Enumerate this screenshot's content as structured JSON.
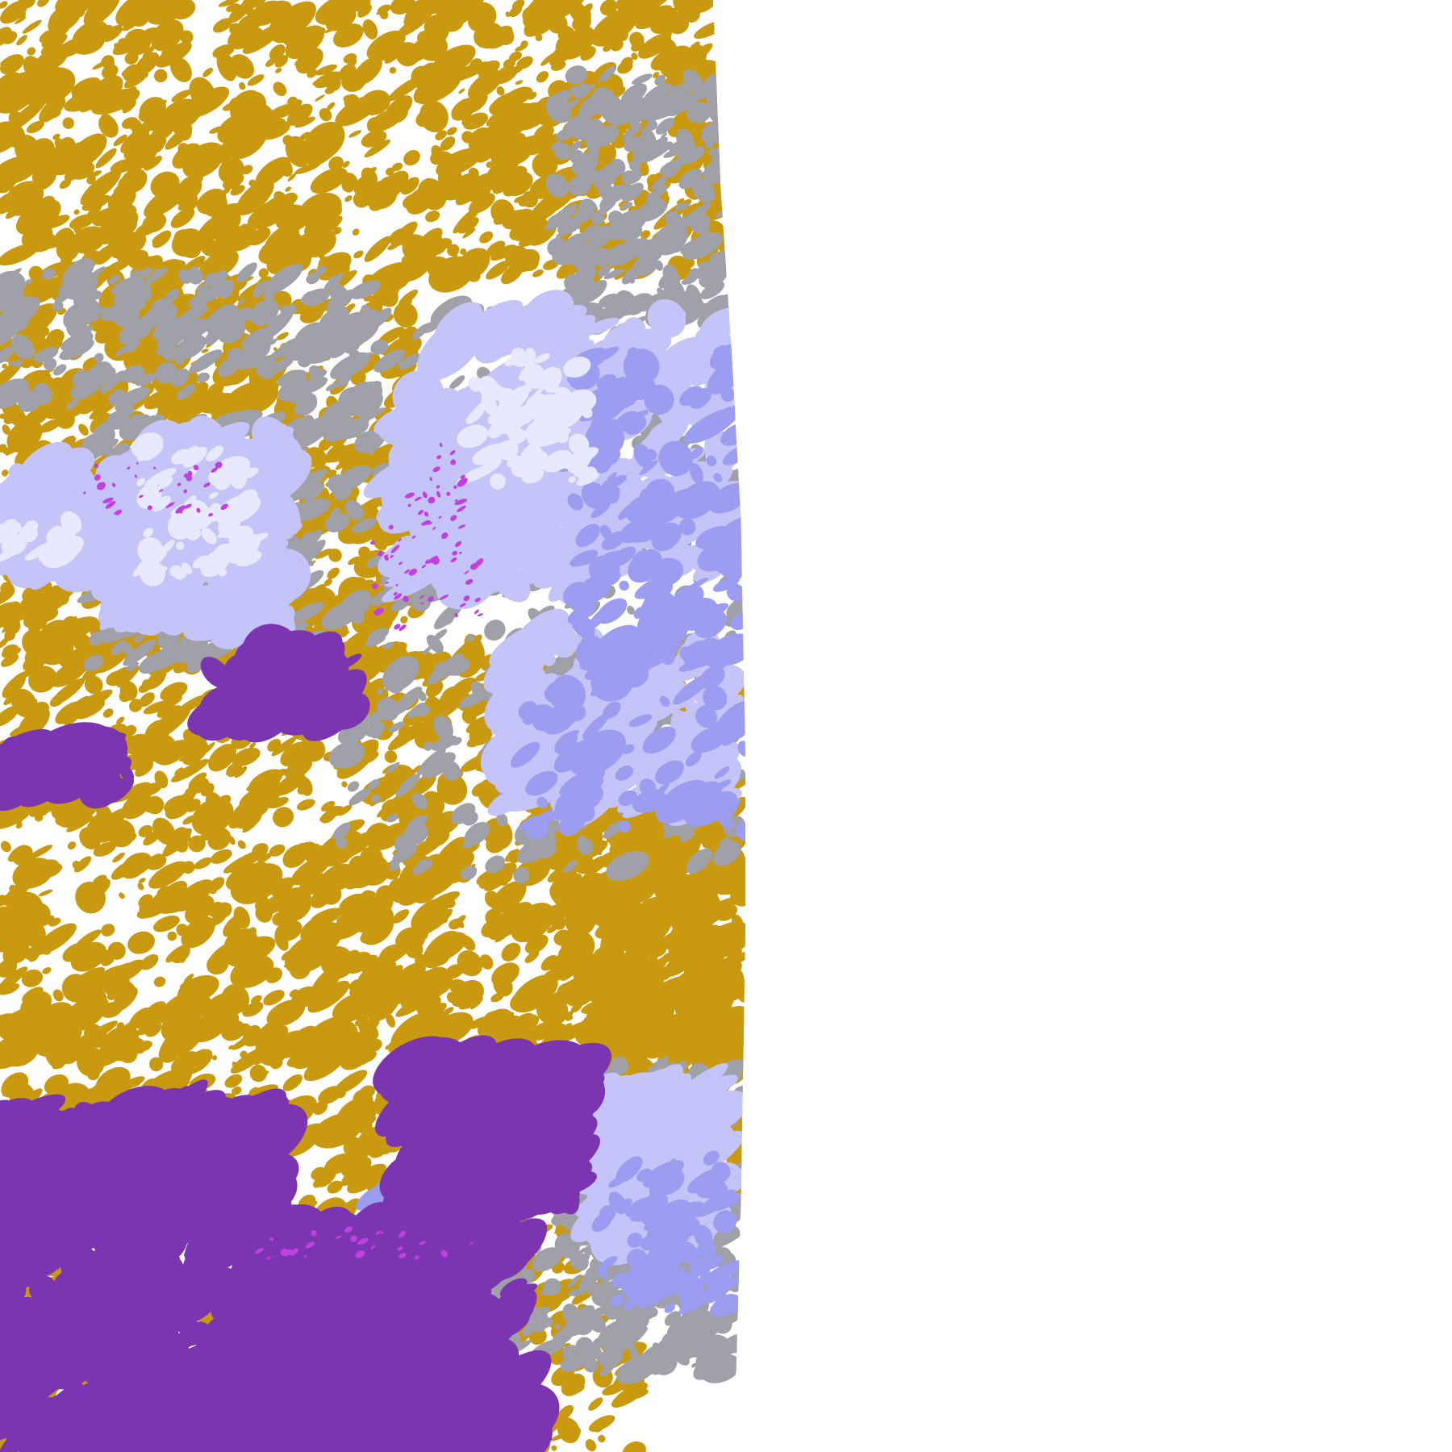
{
  "image": {
    "kind": "satellite cloud classification",
    "palette": {
      "background": "#ffffff",
      "gold": "#c99a10",
      "purple": "#7b35b0",
      "gray": "#a0a0a8",
      "lavender": "#c4c4f8",
      "periwinkle": "#9c9cf0",
      "pale": "#e8e8ff",
      "magenta": "#c040e0"
    }
  }
}
